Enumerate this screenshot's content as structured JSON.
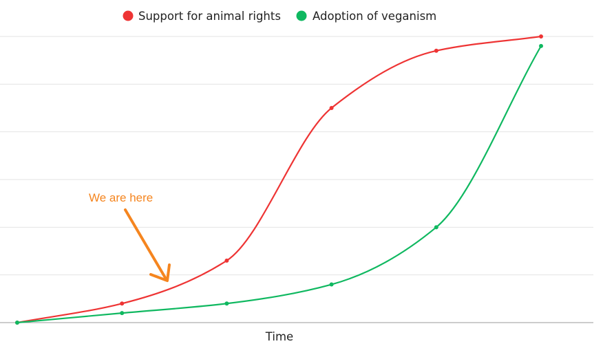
{
  "chart_data": {
    "type": "line",
    "title": "",
    "xlabel": "Time",
    "ylabel": "",
    "x": [
      0,
      1,
      2,
      3,
      4,
      5
    ],
    "xlim": [
      0,
      5
    ],
    "ylim": [
      0,
      6
    ],
    "grid": true,
    "legend_placement": "top-center",
    "series": [
      {
        "name": "Support for animal rights",
        "color": "#ee3434",
        "values": [
          0,
          0.4,
          1.3,
          4.5,
          5.7,
          6.0
        ]
      },
      {
        "name": "Adoption of veganism",
        "color": "#0fb860",
        "values": [
          0,
          0.2,
          0.4,
          0.8,
          2.0,
          5.8
        ]
      }
    ],
    "annotation": {
      "text": "We are here",
      "color": "#f5851f",
      "x": 1.43,
      "y": 0.9
    }
  }
}
